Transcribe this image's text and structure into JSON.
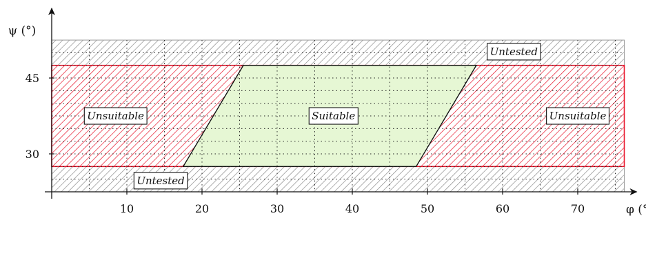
{
  "chart_data": {
    "type": "region-map",
    "xlabel": "φ (°)",
    "ylabel": "ψ (°)",
    "x_ticks": [
      10,
      20,
      30,
      40,
      50,
      60,
      70
    ],
    "y_ticks": [
      30,
      45
    ],
    "xlim": [
      0,
      75
    ],
    "ylim": [
      22.5,
      52.5
    ],
    "grid": true,
    "regions": [
      {
        "label": "Untested",
        "kind": "untested",
        "psi_range": [
          47.5,
          52.5
        ],
        "phi_range": [
          0,
          75
        ],
        "color": "#888888",
        "hatch": true
      },
      {
        "label": "Untested",
        "kind": "untested",
        "psi_range": [
          22.5,
          27.5
        ],
        "phi_range": [
          0,
          75
        ],
        "color": "#888888",
        "hatch": true
      },
      {
        "label": "Unsuitable",
        "kind": "unsuitable",
        "psi_range": [
          27.5,
          47.5
        ],
        "phi_range": [
          0,
          75
        ],
        "color": "#e8142a",
        "hatch": true
      },
      {
        "label": "Suitable",
        "kind": "suitable",
        "polygon": [
          [
            17.5,
            27.5
          ],
          [
            48.5,
            27.5
          ],
          [
            56.5,
            47.5
          ],
          [
            25.5,
            47.5
          ]
        ],
        "color": "#e6f7d4"
      }
    ]
  }
}
